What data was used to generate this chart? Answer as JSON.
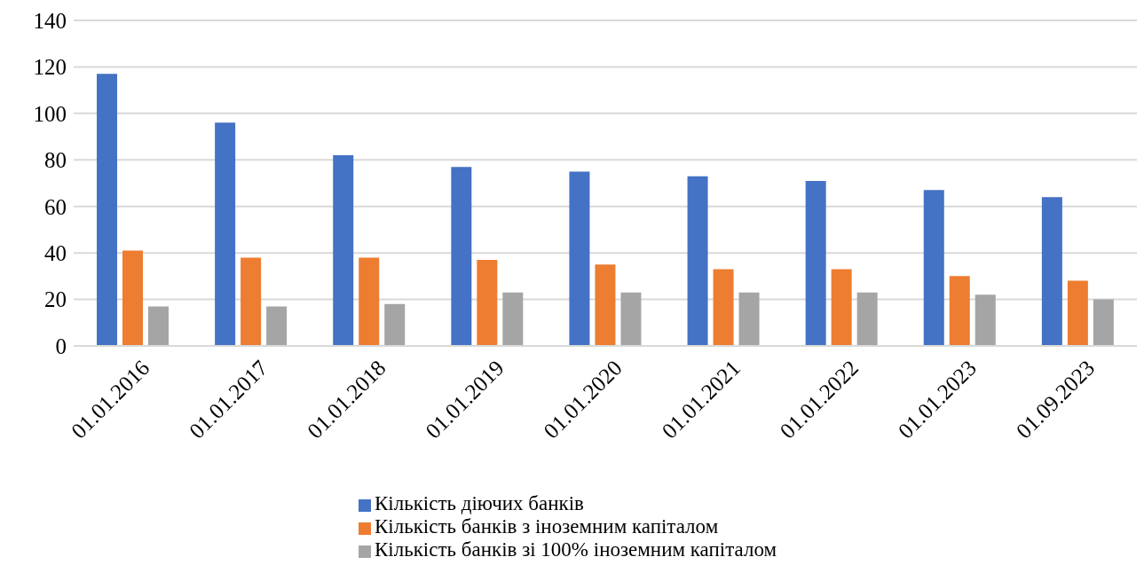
{
  "chart_data": {
    "type": "bar",
    "categories": [
      "01.01.2016",
      "01.01.2017",
      "01.01.2018",
      "01.01.2019",
      "01.01.2020",
      "01.01.2021",
      "01.01.2022",
      "01.01.2023",
      "01.09.2023"
    ],
    "series": [
      {
        "name": "Кількість діючих банків",
        "color": "#4472c4",
        "values": [
          117,
          96,
          82,
          77,
          75,
          73,
          71,
          67,
          64
        ]
      },
      {
        "name": "Кількість банків з іноземним капіталом",
        "color": "#ed7d31",
        "values": [
          41,
          38,
          38,
          37,
          35,
          33,
          33,
          30,
          28
        ]
      },
      {
        "name": "Кількість банків зі 100% іноземним капіталом",
        "color": "#a5a5a5",
        "values": [
          17,
          17,
          18,
          23,
          23,
          23,
          23,
          22,
          20
        ]
      }
    ],
    "ylim": [
      0,
      140
    ],
    "yticks": [
      0,
      20,
      40,
      60,
      80,
      100,
      120,
      140
    ],
    "grid": "y",
    "legend": "bottom"
  }
}
